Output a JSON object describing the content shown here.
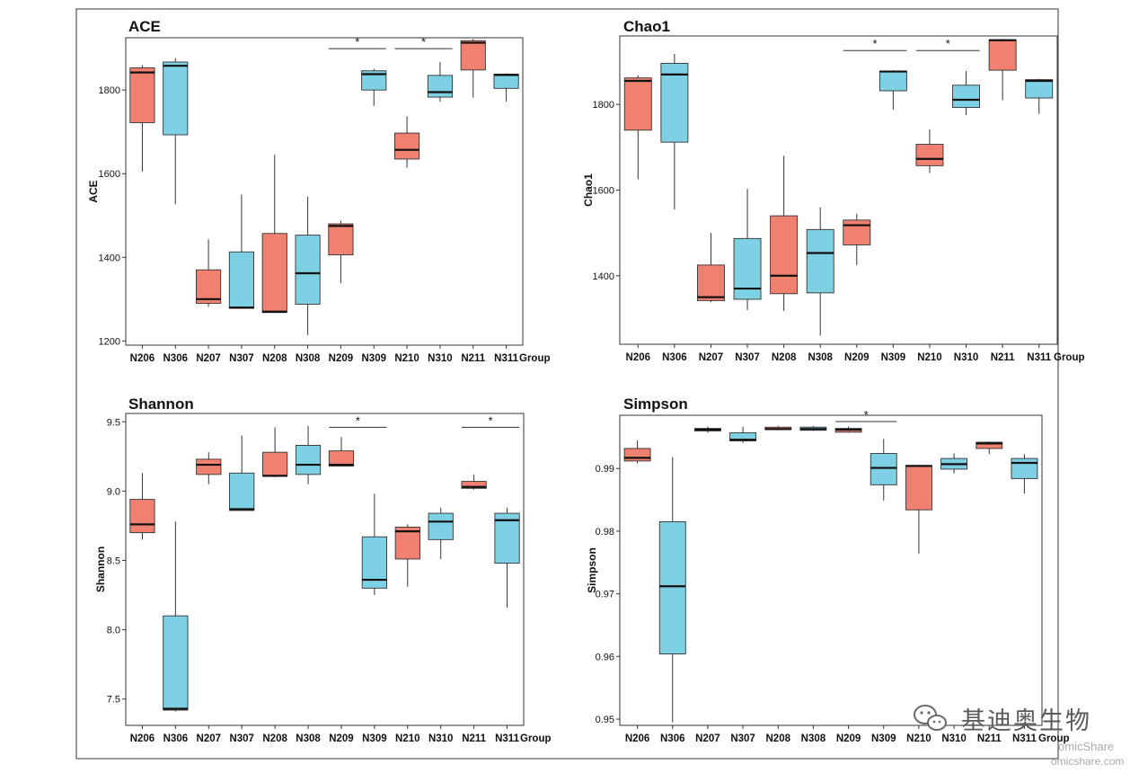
{
  "colors": {
    "salmon": "#F08070",
    "cyan": "#7ED0E4",
    "median": "#111111",
    "whisker": "#333333"
  },
  "watermark": {
    "account": "基迪奥生物",
    "icon": "wechat-icon",
    "site_line1": "omicShare",
    "site_line2": "omicshare.com"
  },
  "chart_data": [
    {
      "type": "box",
      "title": "ACE",
      "ylabel": "ACE",
      "xlabel": "Group",
      "ylim": [
        1190,
        1925
      ],
      "yticks": [
        1200,
        1400,
        1600,
        1800
      ],
      "categories": [
        "N206",
        "N306",
        "N207",
        "N307",
        "N208",
        "N308",
        "N209",
        "N309",
        "N210",
        "N310",
        "N211",
        "N311"
      ],
      "boxes": [
        {
          "min": 1605,
          "q1": 1722,
          "median": 1842,
          "q3": 1853,
          "max": 1860,
          "color": "salmon"
        },
        {
          "min": 1527,
          "q1": 1693,
          "median": 1858,
          "q3": 1867,
          "max": 1876,
          "color": "cyan"
        },
        {
          "min": 1282,
          "q1": 1290,
          "median": 1300,
          "q3": 1370,
          "max": 1443,
          "color": "salmon"
        },
        {
          "min": 1277,
          "q1": 1278,
          "median": 1280,
          "q3": 1413,
          "max": 1550,
          "color": "cyan"
        },
        {
          "min": 1268,
          "q1": 1268,
          "median": 1270,
          "q3": 1457,
          "max": 1645,
          "color": "salmon"
        },
        {
          "min": 1214,
          "q1": 1288,
          "median": 1362,
          "q3": 1453,
          "max": 1545,
          "color": "cyan"
        },
        {
          "min": 1338,
          "q1": 1406,
          "median": 1475,
          "q3": 1480,
          "max": 1488,
          "color": "salmon"
        },
        {
          "min": 1762,
          "q1": 1800,
          "median": 1838,
          "q3": 1846,
          "max": 1851,
          "color": "cyan"
        },
        {
          "min": 1614,
          "q1": 1635,
          "median": 1657,
          "q3": 1697,
          "max": 1737,
          "color": "salmon"
        },
        {
          "min": 1772,
          "q1": 1783,
          "median": 1795,
          "q3": 1835,
          "max": 1867,
          "color": "cyan"
        },
        {
          "min": 1782,
          "q1": 1848,
          "median": 1913,
          "q3": 1918,
          "max": 1922,
          "color": "salmon"
        },
        {
          "min": 1772,
          "q1": 1804,
          "median": 1836,
          "q3": 1838,
          "max": 1840,
          "color": "cyan"
        }
      ],
      "significance": [
        {
          "from": "N209",
          "to": "N309",
          "value": 1899,
          "label": "*"
        },
        {
          "from": "N210",
          "to": "N310",
          "value": 1899,
          "label": "*"
        }
      ]
    },
    {
      "type": "box",
      "title": "Chao1",
      "ylabel": "Chao1",
      "xlabel": "Group",
      "ylim": [
        1240,
        1960
      ],
      "yticks": [
        1400,
        1600,
        1800
      ],
      "categories": [
        "N206",
        "N306",
        "N207",
        "N307",
        "N208",
        "N308",
        "N209",
        "N309",
        "N210",
        "N310",
        "N211",
        "N311"
      ],
      "boxes": [
        {
          "min": 1625,
          "q1": 1740,
          "median": 1855,
          "q3": 1862,
          "max": 1868,
          "color": "salmon"
        },
        {
          "min": 1555,
          "q1": 1712,
          "median": 1870,
          "q3": 1896,
          "max": 1918,
          "color": "cyan"
        },
        {
          "min": 1338,
          "q1": 1342,
          "median": 1350,
          "q3": 1425,
          "max": 1500,
          "color": "salmon"
        },
        {
          "min": 1320,
          "q1": 1345,
          "median": 1370,
          "q3": 1487,
          "max": 1603,
          "color": "cyan"
        },
        {
          "min": 1318,
          "q1": 1358,
          "median": 1400,
          "q3": 1540,
          "max": 1680,
          "color": "salmon"
        },
        {
          "min": 1260,
          "q1": 1360,
          "median": 1453,
          "q3": 1508,
          "max": 1560,
          "color": "cyan"
        },
        {
          "min": 1425,
          "q1": 1472,
          "median": 1518,
          "q3": 1530,
          "max": 1545,
          "color": "salmon"
        },
        {
          "min": 1788,
          "q1": 1832,
          "median": 1877,
          "q3": 1878,
          "max": 1880,
          "color": "cyan"
        },
        {
          "min": 1640,
          "q1": 1657,
          "median": 1673,
          "q3": 1707,
          "max": 1742,
          "color": "salmon"
        },
        {
          "min": 1775,
          "q1": 1793,
          "median": 1811,
          "q3": 1845,
          "max": 1878,
          "color": "cyan"
        },
        {
          "min": 1810,
          "q1": 1880,
          "median": 1950,
          "q3": 1951,
          "max": 1953,
          "color": "salmon"
        },
        {
          "min": 1778,
          "q1": 1815,
          "median": 1855,
          "q3": 1858,
          "max": 1860,
          "color": "cyan"
        }
      ],
      "significance": [
        {
          "from": "N209",
          "to": "N309",
          "value": 1926,
          "label": "*"
        },
        {
          "from": "N210",
          "to": "N310",
          "value": 1926,
          "label": "*"
        }
      ]
    },
    {
      "type": "box",
      "title": "Shannon",
      "ylabel": "Shannon",
      "xlabel": "Group",
      "ylim": [
        7.31,
        9.56
      ],
      "yticks": [
        7.5,
        8.0,
        8.5,
        9.0,
        9.5
      ],
      "ytick_labels": [
        "7.5",
        "8.0",
        "8.5",
        "9.0",
        "9.5"
      ],
      "categories": [
        "N206",
        "N306",
        "N207",
        "N307",
        "N208",
        "N308",
        "N209",
        "N309",
        "N210",
        "N310",
        "N211",
        "N311"
      ],
      "boxes": [
        {
          "min": 8.65,
          "q1": 8.7,
          "median": 8.76,
          "q3": 8.94,
          "max": 9.13,
          "color": "salmon"
        },
        {
          "min": 7.41,
          "q1": 7.42,
          "median": 7.43,
          "q3": 8.1,
          "max": 8.78,
          "color": "cyan"
        },
        {
          "min": 9.05,
          "q1": 9.12,
          "median": 9.19,
          "q3": 9.23,
          "max": 9.28,
          "color": "salmon"
        },
        {
          "min": 8.86,
          "q1": 8.86,
          "median": 8.87,
          "q3": 9.13,
          "max": 9.4,
          "color": "cyan"
        },
        {
          "min": 9.1,
          "q1": 9.11,
          "median": 9.11,
          "q3": 9.28,
          "max": 9.46,
          "color": "salmon"
        },
        {
          "min": 9.05,
          "q1": 9.12,
          "median": 9.19,
          "q3": 9.33,
          "max": 9.47,
          "color": "cyan"
        },
        {
          "min": 9.18,
          "q1": 9.18,
          "median": 9.19,
          "q3": 9.29,
          "max": 9.39,
          "color": "salmon"
        },
        {
          "min": 8.25,
          "q1": 8.3,
          "median": 8.36,
          "q3": 8.67,
          "max": 8.98,
          "color": "cyan"
        },
        {
          "min": 8.31,
          "q1": 8.51,
          "median": 8.71,
          "q3": 8.74,
          "max": 8.76,
          "color": "salmon"
        },
        {
          "min": 8.51,
          "q1": 8.65,
          "median": 8.78,
          "q3": 8.84,
          "max": 8.88,
          "color": "cyan"
        },
        {
          "min": 9.01,
          "q1": 9.02,
          "median": 9.03,
          "q3": 9.07,
          "max": 9.12,
          "color": "salmon"
        },
        {
          "min": 8.16,
          "q1": 8.48,
          "median": 8.79,
          "q3": 8.84,
          "max": 8.88,
          "color": "cyan"
        }
      ],
      "significance": [
        {
          "from": "N209",
          "to": "N309",
          "value": 9.46,
          "label": "*"
        },
        {
          "from": "N211",
          "to": "N311",
          "value": 9.46,
          "label": "*"
        }
      ]
    },
    {
      "type": "box",
      "title": "Simpson",
      "ylabel": "Simpson",
      "xlabel": "Group",
      "ylim": [
        0.949,
        0.9985
      ],
      "yticks": [
        0.95,
        0.96,
        0.97,
        0.98,
        0.99
      ],
      "ytick_labels": [
        "0.95",
        "0.96",
        "0.97",
        "0.98",
        "0.99"
      ],
      "categories": [
        "N206",
        "N306",
        "N207",
        "N307",
        "N208",
        "N308",
        "N209",
        "N309",
        "N210",
        "N310",
        "N211",
        "N311"
      ],
      "boxes": [
        {
          "min": 0.9908,
          "q1": 0.9912,
          "median": 0.9917,
          "q3": 0.9932,
          "max": 0.9945,
          "color": "salmon"
        },
        {
          "min": 0.9495,
          "q1": 0.9604,
          "median": 0.9712,
          "q3": 0.9815,
          "max": 0.9918,
          "color": "cyan"
        },
        {
          "min": 0.9957,
          "q1": 0.996,
          "median": 0.9962,
          "q3": 0.9964,
          "max": 0.9967,
          "color": "salmon"
        },
        {
          "min": 0.9941,
          "q1": 0.9944,
          "median": 0.9946,
          "q3": 0.9957,
          "max": 0.9967,
          "color": "cyan"
        },
        {
          "min": 0.9961,
          "q1": 0.9962,
          "median": 0.9963,
          "q3": 0.9966,
          "max": 0.9968,
          "color": "salmon"
        },
        {
          "min": 0.996,
          "q1": 0.9961,
          "median": 0.9963,
          "q3": 0.9966,
          "max": 0.9968,
          "color": "cyan"
        },
        {
          "min": 0.9957,
          "q1": 0.9958,
          "median": 0.9962,
          "q3": 0.9964,
          "max": 0.9967,
          "color": "salmon"
        },
        {
          "min": 0.9849,
          "q1": 0.9874,
          "median": 0.9901,
          "q3": 0.9924,
          "max": 0.9947,
          "color": "cyan"
        },
        {
          "min": 0.9764,
          "q1": 0.9834,
          "median": 0.9904,
          "q3": 0.9905,
          "max": 0.9906,
          "color": "salmon"
        },
        {
          "min": 0.9892,
          "q1": 0.9899,
          "median": 0.9907,
          "q3": 0.9916,
          "max": 0.9924,
          "color": "cyan"
        },
        {
          "min": 0.9923,
          "q1": 0.9932,
          "median": 0.994,
          "q3": 0.9942,
          "max": 0.9943,
          "color": "salmon"
        },
        {
          "min": 0.986,
          "q1": 0.9884,
          "median": 0.9909,
          "q3": 0.9916,
          "max": 0.9923,
          "color": "cyan"
        }
      ],
      "significance": [
        {
          "from": "N209",
          "to": "N309",
          "value": 0.9975,
          "label": "*"
        }
      ]
    }
  ]
}
